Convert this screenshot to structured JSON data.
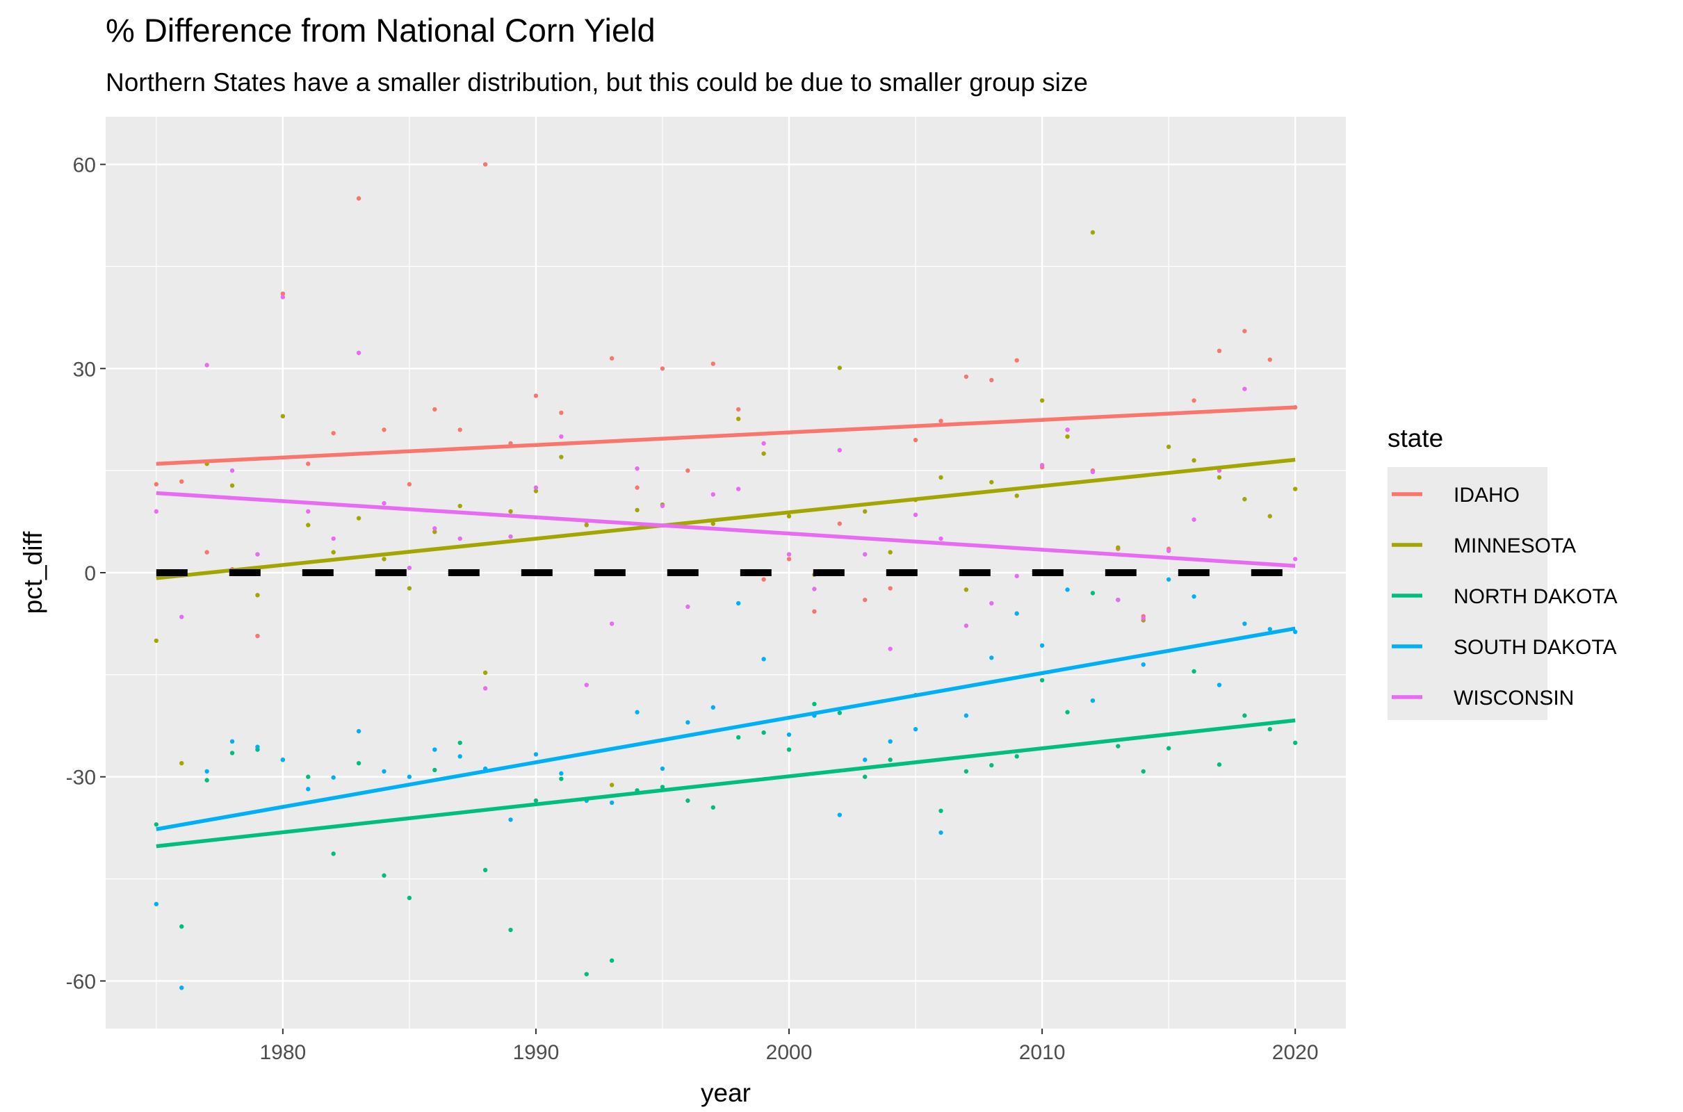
{
  "chart_data": {
    "type": "scatter",
    "title": "% Difference from National Corn Yield",
    "subtitle": "Northern States have a smaller distribution, but this could be due to smaller group size",
    "xlabel": "year",
    "ylabel": "pct_diff",
    "xlim": [
      1973,
      2022
    ],
    "ylim": [
      -67,
      67
    ],
    "x_ticks": [
      1980,
      1990,
      2000,
      2010,
      2020
    ],
    "y_ticks": [
      -60,
      -30,
      0,
      30,
      60
    ],
    "x_tick_labels": [
      "1980",
      "1990",
      "2000",
      "2010",
      "2020"
    ],
    "y_tick_labels": [
      "-60",
      "-30",
      "0",
      "30",
      "60"
    ],
    "grid": true,
    "reference_line": {
      "y": 0,
      "style": "dashed",
      "color": "#000000"
    },
    "legend": {
      "title": "state",
      "placement": "right"
    },
    "series": [
      {
        "name": "IDAHO",
        "color": "#F8766D",
        "trend": {
          "x": [
            1975,
            2020
          ],
          "y": [
            16.0,
            24.3
          ]
        },
        "points": [
          [
            1975,
            13
          ],
          [
            1976,
            13.4
          ],
          [
            1977,
            3
          ],
          [
            1978,
            0.5
          ],
          [
            1979,
            -9.3
          ],
          [
            1980,
            41
          ],
          [
            1981,
            16
          ],
          [
            1982,
            20.5
          ],
          [
            1983,
            55
          ],
          [
            1984,
            21
          ],
          [
            1985,
            13
          ],
          [
            1986,
            24
          ],
          [
            1987,
            21
          ],
          [
            1988,
            60
          ],
          [
            1989,
            19
          ],
          [
            1990,
            26
          ],
          [
            1991,
            23.5
          ],
          [
            1992,
            7.5
          ],
          [
            1993,
            31.5
          ],
          [
            1994,
            12.5
          ],
          [
            1995,
            30
          ],
          [
            1996,
            15
          ],
          [
            1997,
            30.7
          ],
          [
            1998,
            24
          ],
          [
            1999,
            -1
          ],
          [
            2000,
            2
          ],
          [
            2001,
            -5.7
          ],
          [
            2002,
            7.2
          ],
          [
            2003,
            -4
          ],
          [
            2004,
            -2.3
          ],
          [
            2005,
            19.5
          ],
          [
            2006,
            22.3
          ],
          [
            2007,
            28.8
          ],
          [
            2008,
            28.3
          ],
          [
            2009,
            31.2
          ],
          [
            2010,
            15.5
          ],
          [
            2011,
            21
          ],
          [
            2012,
            15
          ],
          [
            2013,
            3.5
          ],
          [
            2014,
            -6.4
          ],
          [
            2015,
            3.5
          ],
          [
            2016,
            25.3
          ],
          [
            2017,
            32.6
          ],
          [
            2018,
            35.5
          ],
          [
            2019,
            31.3
          ],
          [
            2020,
            24.3
          ]
        ]
      },
      {
        "name": "MINNESOTA",
        "color": "#A3A500",
        "trend": {
          "x": [
            1975,
            2020
          ],
          "y": [
            -0.8,
            16.6
          ]
        },
        "points": [
          [
            1975,
            -10
          ],
          [
            1976,
            -28
          ],
          [
            1977,
            16
          ],
          [
            1978,
            12.8
          ],
          [
            1979,
            -3.3
          ],
          [
            1980,
            23
          ],
          [
            1981,
            7
          ],
          [
            1982,
            3
          ],
          [
            1983,
            8
          ],
          [
            1984,
            2
          ],
          [
            1985,
            -2.3
          ],
          [
            1986,
            6
          ],
          [
            1987,
            9.8
          ],
          [
            1988,
            -14.7
          ],
          [
            1989,
            9
          ],
          [
            1990,
            12
          ],
          [
            1991,
            17
          ],
          [
            1992,
            7
          ],
          [
            1993,
            -31.2
          ],
          [
            1994,
            9.2
          ],
          [
            1995,
            10
          ],
          [
            1996,
            0
          ],
          [
            1997,
            7.2
          ],
          [
            1998,
            22.6
          ],
          [
            1999,
            17.5
          ],
          [
            2000,
            8.3
          ],
          [
            2001,
            -0.3
          ],
          [
            2002,
            30.1
          ],
          [
            2003,
            9
          ],
          [
            2004,
            3
          ],
          [
            2005,
            10.7
          ],
          [
            2006,
            14
          ],
          [
            2007,
            -2.5
          ],
          [
            2008,
            13.3
          ],
          [
            2009,
            11.3
          ],
          [
            2010,
            25.3
          ],
          [
            2011,
            20
          ],
          [
            2012,
            50
          ],
          [
            2013,
            3.7
          ],
          [
            2014,
            -7
          ],
          [
            2015,
            18.5
          ],
          [
            2016,
            16.5
          ],
          [
            2017,
            14
          ],
          [
            2018,
            10.8
          ],
          [
            2019,
            8.3
          ],
          [
            2020,
            12.3
          ]
        ]
      },
      {
        "name": "NORTH DAKOTA",
        "color": "#00BF7D",
        "trend": {
          "x": [
            1975,
            2020
          ],
          "y": [
            -40.2,
            -21.7
          ]
        },
        "points": [
          [
            1975,
            -37
          ],
          [
            1976,
            -52
          ],
          [
            1977,
            -30.5
          ],
          [
            1978,
            -26.5
          ],
          [
            1979,
            -26
          ],
          [
            1980,
            -27.5
          ],
          [
            1981,
            -30
          ],
          [
            1982,
            -41.3
          ],
          [
            1983,
            -28
          ],
          [
            1984,
            -44.5
          ],
          [
            1985,
            -47.8
          ],
          [
            1986,
            -29
          ],
          [
            1987,
            -25
          ],
          [
            1988,
            -43.7
          ],
          [
            1989,
            -52.5
          ],
          [
            1990,
            -33.5
          ],
          [
            1991,
            -30.3
          ],
          [
            1992,
            -59
          ],
          [
            1993,
            -57
          ],
          [
            1994,
            -32
          ],
          [
            1995,
            -31.5
          ],
          [
            1996,
            -33.5
          ],
          [
            1997,
            -34.5
          ],
          [
            1998,
            -24.2
          ],
          [
            1999,
            -23.5
          ],
          [
            2000,
            -26
          ],
          [
            2001,
            -19.3
          ],
          [
            2002,
            -20.6
          ],
          [
            2003,
            -30
          ],
          [
            2004,
            -27.5
          ],
          [
            2005,
            -18
          ],
          [
            2006,
            -35
          ],
          [
            2007,
            -29.2
          ],
          [
            2008,
            -28.3
          ],
          [
            2009,
            -27
          ],
          [
            2010,
            -15.8
          ],
          [
            2011,
            -20.5
          ],
          [
            2012,
            -3
          ],
          [
            2013,
            -25.5
          ],
          [
            2014,
            -29.2
          ],
          [
            2015,
            -25.8
          ],
          [
            2016,
            -14.5
          ],
          [
            2017,
            -28.2
          ],
          [
            2018,
            -21
          ],
          [
            2019,
            -23
          ],
          [
            2020,
            -25
          ]
        ]
      },
      {
        "name": "SOUTH DAKOTA",
        "color": "#00B0F6",
        "trend": {
          "x": [
            1975,
            2020
          ],
          "y": [
            -37.7,
            -8.2
          ]
        },
        "points": [
          [
            1975,
            -48.7
          ],
          [
            1976,
            -61
          ],
          [
            1977,
            -29.2
          ],
          [
            1978,
            -24.8
          ],
          [
            1979,
            -25.6
          ],
          [
            1980,
            -27.5
          ],
          [
            1981,
            -31.8
          ],
          [
            1982,
            -30.1
          ],
          [
            1983,
            -23.3
          ],
          [
            1984,
            -29.2
          ],
          [
            1985,
            -30
          ],
          [
            1986,
            -26
          ],
          [
            1987,
            -27
          ],
          [
            1988,
            -28.8
          ],
          [
            1989,
            -36.3
          ],
          [
            1990,
            -26.7
          ],
          [
            1991,
            -29.5
          ],
          [
            1992,
            -33.5
          ],
          [
            1993,
            -33.8
          ],
          [
            1994,
            -20.5
          ],
          [
            1995,
            -28.8
          ],
          [
            1996,
            -22
          ],
          [
            1997,
            -19.8
          ],
          [
            1998,
            -4.5
          ],
          [
            1999,
            -12.7
          ],
          [
            2000,
            -23.8
          ],
          [
            2001,
            -21
          ],
          [
            2002,
            -35.6
          ],
          [
            2003,
            -27.5
          ],
          [
            2004,
            -24.8
          ],
          [
            2005,
            -23
          ],
          [
            2006,
            -38.2
          ],
          [
            2007,
            -21
          ],
          [
            2008,
            -12.5
          ],
          [
            2009,
            -6
          ],
          [
            2010,
            -10.7
          ],
          [
            2011,
            -2.5
          ],
          [
            2012,
            -18.8
          ],
          [
            2013,
            -4
          ],
          [
            2014,
            -13.5
          ],
          [
            2015,
            -1
          ],
          [
            2016,
            -3.5
          ],
          [
            2017,
            -16.5
          ],
          [
            2018,
            -7.5
          ],
          [
            2019,
            -8.3
          ],
          [
            2020,
            -8.7
          ]
        ]
      },
      {
        "name": "WISCONSIN",
        "color": "#E76BF3",
        "trend": {
          "x": [
            1975,
            2020
          ],
          "y": [
            11.7,
            1.0
          ]
        },
        "points": [
          [
            1975,
            9
          ],
          [
            1976,
            -6.5
          ],
          [
            1977,
            30.5
          ],
          [
            1978,
            15
          ],
          [
            1979,
            2.7
          ],
          [
            1980,
            40.5
          ],
          [
            1981,
            9
          ],
          [
            1982,
            5
          ],
          [
            1983,
            32.3
          ],
          [
            1984,
            10.2
          ],
          [
            1985,
            0.7
          ],
          [
            1986,
            6.5
          ],
          [
            1987,
            5
          ],
          [
            1988,
            -17
          ],
          [
            1989,
            5.3
          ],
          [
            1990,
            12.5
          ],
          [
            1991,
            20
          ],
          [
            1992,
            -16.5
          ],
          [
            1993,
            -7.5
          ],
          [
            1994,
            15.3
          ],
          [
            1995,
            9.8
          ],
          [
            1996,
            -5
          ],
          [
            1997,
            11.5
          ],
          [
            1998,
            12.3
          ],
          [
            1999,
            19
          ],
          [
            2000,
            2.7
          ],
          [
            2001,
            -2.4
          ],
          [
            2002,
            18
          ],
          [
            2003,
            2.7
          ],
          [
            2004,
            -11.2
          ],
          [
            2005,
            8.5
          ],
          [
            2006,
            5
          ],
          [
            2007,
            -7.8
          ],
          [
            2008,
            -4.5
          ],
          [
            2009,
            -0.5
          ],
          [
            2010,
            15.8
          ],
          [
            2011,
            21
          ],
          [
            2012,
            14.8
          ],
          [
            2013,
            -4
          ],
          [
            2014,
            -6.7
          ],
          [
            2015,
            3.2
          ],
          [
            2016,
            7.8
          ],
          [
            2017,
            15
          ],
          [
            2018,
            27
          ],
          [
            2019,
            0.2
          ],
          [
            2020,
            2
          ]
        ]
      }
    ]
  }
}
